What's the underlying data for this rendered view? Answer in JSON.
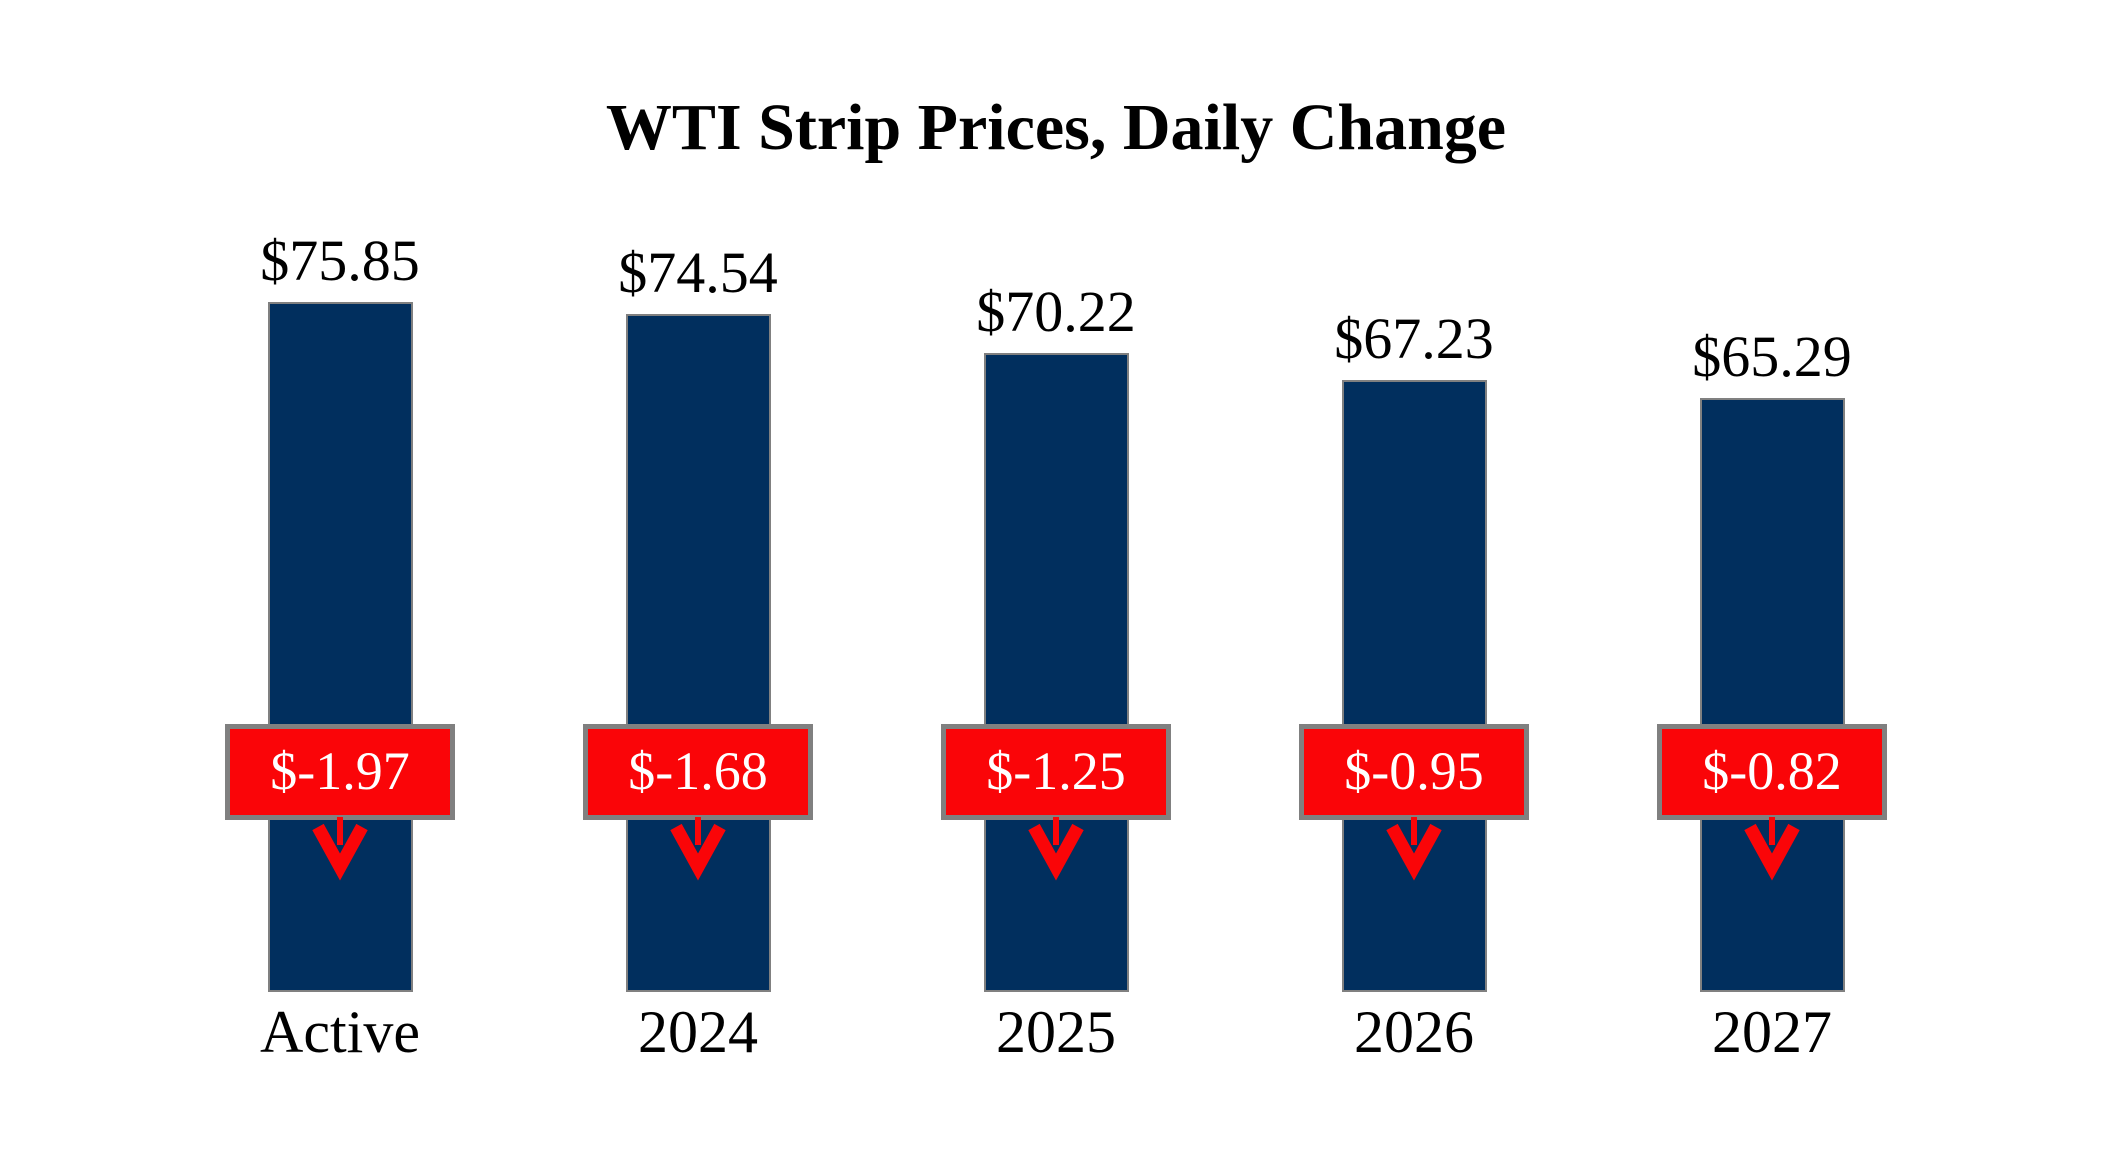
{
  "title": "WTI Strip Prices, Daily Change",
  "colors": {
    "background": "#ffffff",
    "bar": "#012f5e",
    "bar_border": "#808080",
    "change_box_bg": "#fa0508",
    "change_box_border": "#808080",
    "change_text": "#ffffff",
    "arrow": "#fa0508",
    "text": "#000000"
  },
  "chart_data": {
    "type": "bar",
    "title": "WTI Strip Prices, Daily Change",
    "categories": [
      "Active",
      "2024",
      "2025",
      "2026",
      "2027"
    ],
    "series": [
      {
        "name": "strip_price",
        "values": [
          75.85,
          74.54,
          70.22,
          67.23,
          65.29
        ],
        "data_labels": [
          "$75.85",
          "$74.54",
          "$70.22",
          "$67.23",
          "$65.29"
        ]
      },
      {
        "name": "daily_change",
        "values": [
          -1.97,
          -1.68,
          -1.25,
          -0.95,
          -0.82
        ],
        "data_labels": [
          "$-1.97",
          "$-1.68",
          "$-1.25",
          "$-0.95",
          "$-0.82"
        ]
      }
    ],
    "ylim": [
      0,
      75.85
    ],
    "grid": false,
    "legend": false,
    "layout": "vertical bars, price labels above bars, red daily-change callout boxes with down arrows overlaid at fixed height, category labels below"
  }
}
